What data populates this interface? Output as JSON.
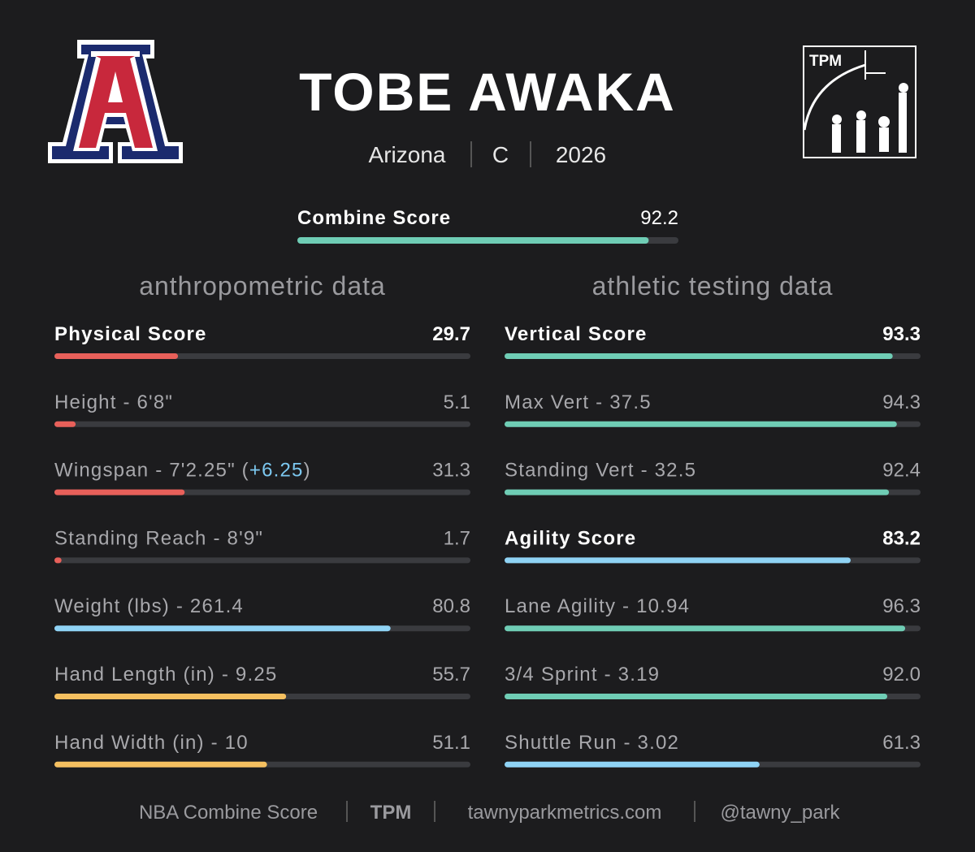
{
  "header": {
    "name": "TOBE AWAKA",
    "school": "Arizona",
    "position": "C",
    "year": "2026",
    "logo_text": "TPM"
  },
  "combine": {
    "label": "Combine Score",
    "value": 92.2,
    "color": "#6fcdb5"
  },
  "xlim": [
    0,
    100
  ],
  "sections": [
    {
      "title": "anthropometric data",
      "rows": [
        {
          "label_parts": [
            {
              "text": "Physical Score"
            }
          ],
          "value": 29.7,
          "bold": true,
          "color": "#e8605a"
        },
        {
          "label_parts": [
            {
              "text": "Height - 6'8\""
            }
          ],
          "value": 5.1,
          "color": "#e8605a"
        },
        {
          "label_parts": [
            {
              "text": "Wingspan - 7'2.25\" ("
            },
            {
              "text": "+6.25",
              "color": "#7cc8f0"
            },
            {
              "text": ")"
            }
          ],
          "value": 31.3,
          "color": "#e8605a"
        },
        {
          "label_parts": [
            {
              "text": "Standing Reach - 8'9\""
            }
          ],
          "value": 1.7,
          "color": "#e8605a"
        },
        {
          "label_parts": [
            {
              "text": "Weight (lbs) - 261.4"
            }
          ],
          "value": 80.8,
          "color": "#8fd3f5"
        },
        {
          "label_parts": [
            {
              "text": "Hand Length (in) - 9.25"
            }
          ],
          "value": 55.7,
          "color": "#f5c060"
        },
        {
          "label_parts": [
            {
              "text": "Hand Width (in) - 10"
            }
          ],
          "value": 51.1,
          "color": "#f5c060"
        }
      ]
    },
    {
      "title": "athletic testing data",
      "rows": [
        {
          "label_parts": [
            {
              "text": "Vertical Score"
            }
          ],
          "value": 93.3,
          "bold": true,
          "color": "#6fcdb5"
        },
        {
          "label_parts": [
            {
              "text": "Max Vert - 37.5"
            }
          ],
          "value": 94.3,
          "color": "#6fcdb5"
        },
        {
          "label_parts": [
            {
              "text": "Standing Vert - 32.5"
            }
          ],
          "value": 92.4,
          "color": "#6fcdb5"
        },
        {
          "label_parts": [
            {
              "text": "Agility Score"
            }
          ],
          "value": 83.2,
          "bold": true,
          "color": "#8fd3f5"
        },
        {
          "label_parts": [
            {
              "text": "Lane Agility - 10.94"
            }
          ],
          "value": 96.3,
          "color": "#6fcdb5"
        },
        {
          "label_parts": [
            {
              "text": "3/4 Sprint - 3.19"
            }
          ],
          "value": 92,
          "value_label": "92.0",
          "color": "#6fcdb5"
        },
        {
          "label_parts": [
            {
              "text": "Shuttle Run - 3.02"
            }
          ],
          "value": 61.3,
          "color": "#8fd3f5"
        }
      ]
    }
  ],
  "footer": [
    "NBA Combine Score",
    "TPM",
    "tawnyparkmetrics.com",
    "@tawny_park"
  ]
}
